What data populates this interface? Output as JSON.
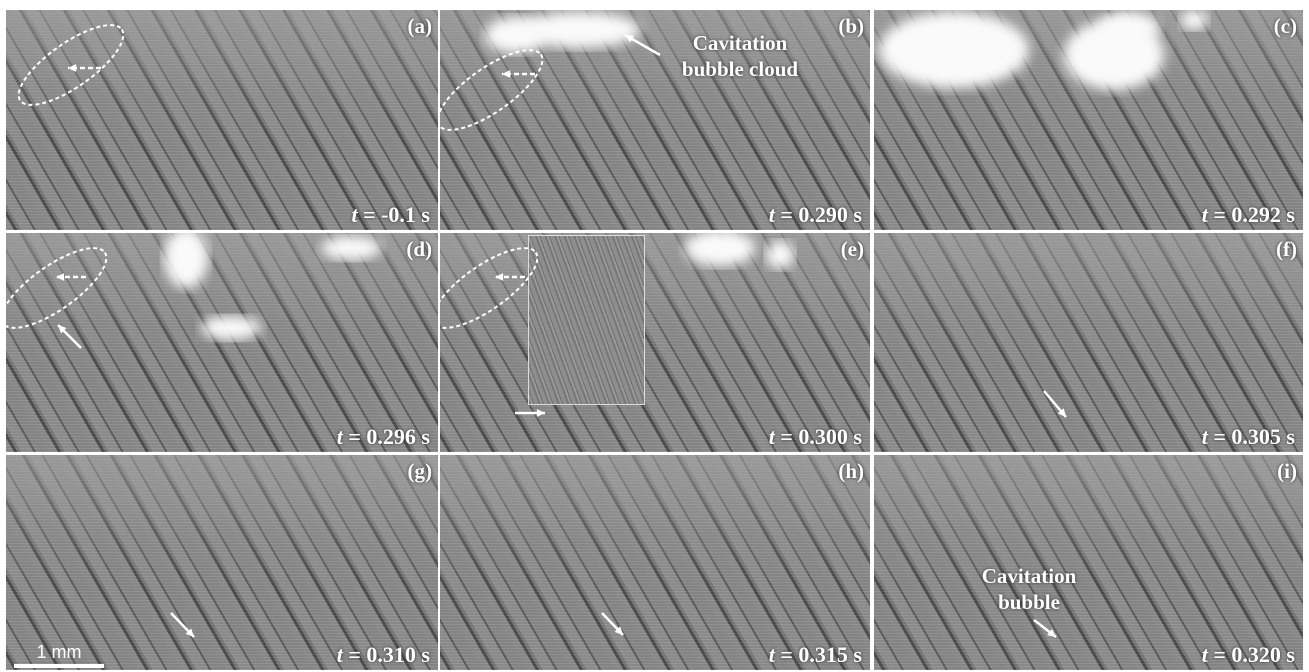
{
  "panels": [
    {
      "label": "(a)",
      "time_var": "t",
      "time": " = -0.1 s"
    },
    {
      "label": "(b)",
      "time_var": "t",
      "time": " = 0.290 s",
      "annotation": [
        "Cavitation",
        "bubble cloud"
      ]
    },
    {
      "label": "(c)",
      "time_var": "t",
      "time": " = 0.292 s"
    },
    {
      "label": "(d)",
      "time_var": "t",
      "time": " = 0.296 s"
    },
    {
      "label": "(e)",
      "time_var": "t",
      "time": " = 0.300 s"
    },
    {
      "label": "(f)",
      "time_var": "t",
      "time": " = 0.305 s"
    },
    {
      "label": "(g)",
      "time_var": "t",
      "time": " = 0.310 s",
      "scale_bar": "1 mm"
    },
    {
      "label": "(h)",
      "time_var": "t",
      "time": " = 0.315 s"
    },
    {
      "label": "(i)",
      "time_var": "t",
      "time": " = 0.320 s",
      "annotation": [
        "Cavitation",
        "bubble"
      ]
    }
  ]
}
